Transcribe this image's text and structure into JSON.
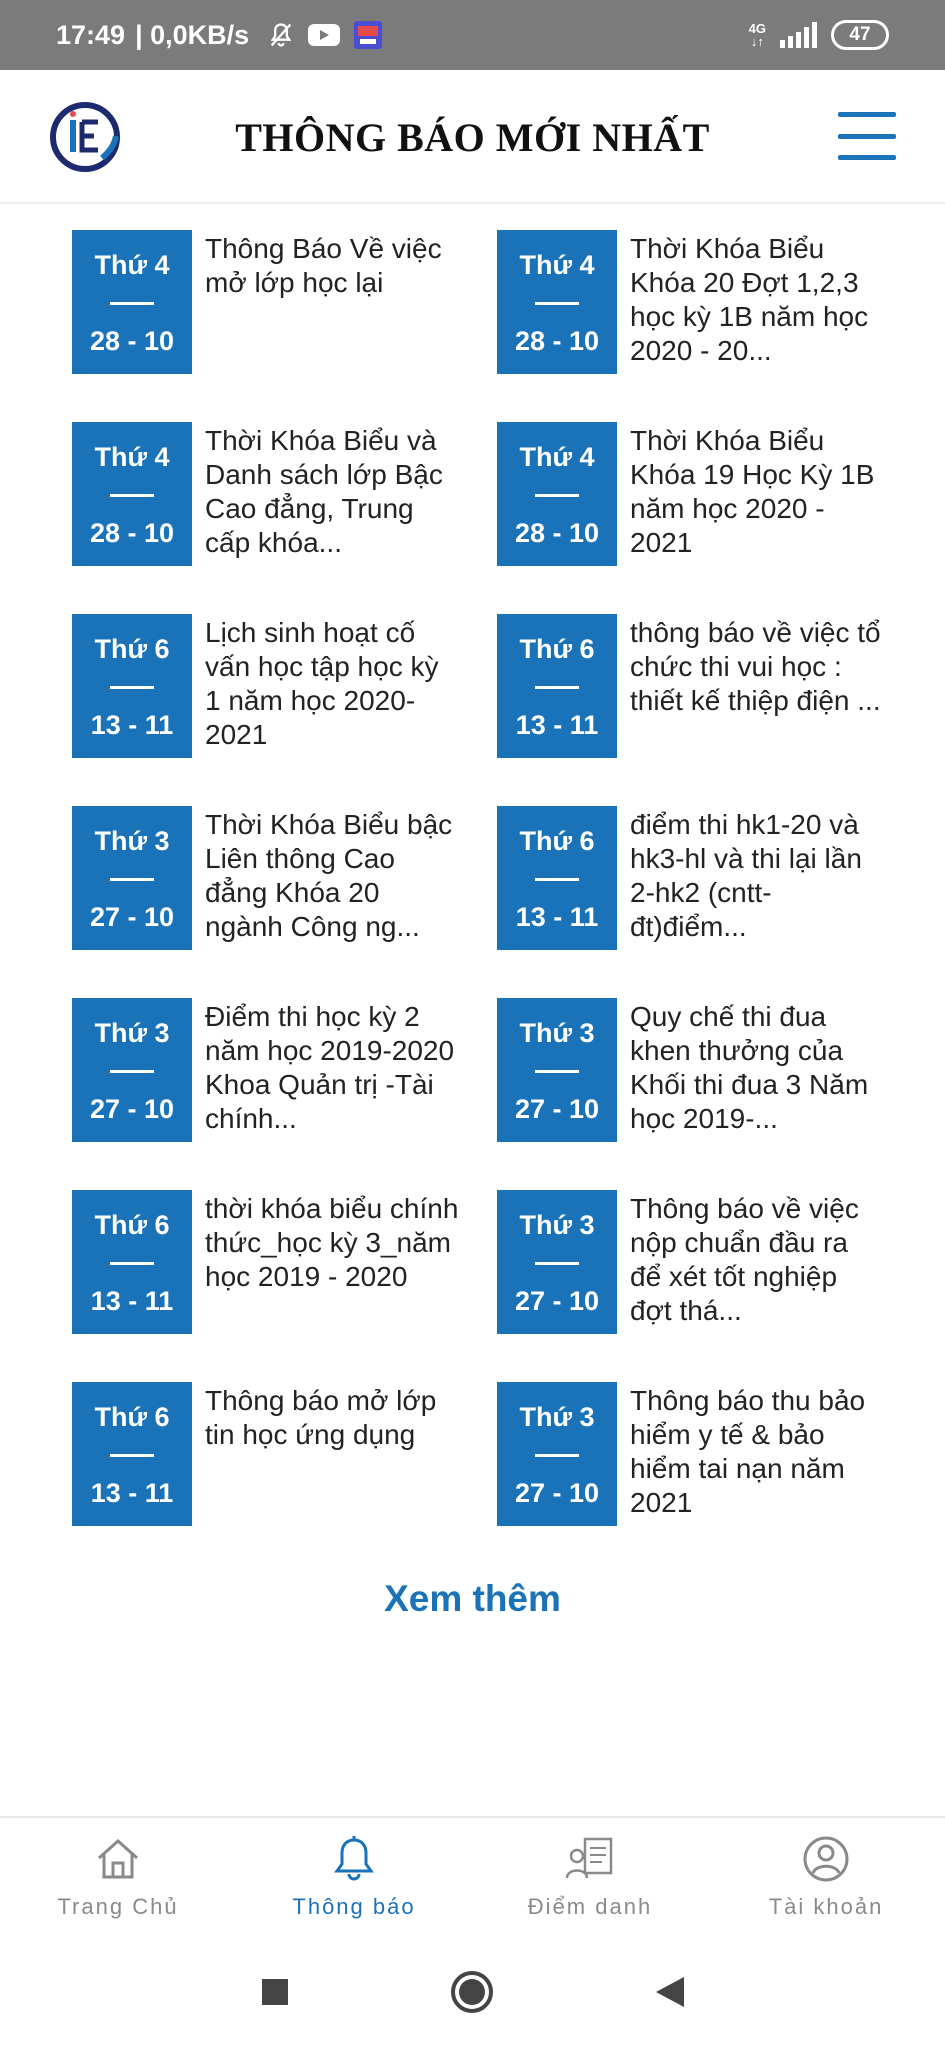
{
  "status_bar": {
    "time": "17:49",
    "network_speed": "| 0,0KB/s",
    "network_type": "4G",
    "battery": "47"
  },
  "header": {
    "title": "THÔNG BÁO MỚI NHẤT",
    "logo_icon": "school-logo-icon",
    "menu_icon": "hamburger-menu-icon",
    "accent_color": "#1a72b8"
  },
  "notices": [
    {
      "day": "Thứ 4",
      "date": "28 - 10",
      "title": "Thông Báo Về việc mở lớp học lại"
    },
    {
      "day": "Thứ 4",
      "date": "28 - 10",
      "title": "Thời Khóa Biểu Khóa 20 Đợt 1,2,3 học kỳ 1B năm học 2020 - 20..."
    },
    {
      "day": "Thứ 4",
      "date": "28 - 10",
      "title": "Thời Khóa Biểu và Danh sách lớp Bậc Cao đẳng, Trung cấp khóa..."
    },
    {
      "day": "Thứ 4",
      "date": "28 - 10",
      "title": "Thời Khóa Biểu Khóa 19 Học Kỳ 1B năm học 2020 - 2021"
    },
    {
      "day": "Thứ 6",
      "date": "13 - 11",
      "title": "Lịch sinh hoạt cố vấn học tập học kỳ 1 năm học 2020-2021"
    },
    {
      "day": "Thứ 6",
      "date": "13 - 11",
      "title": "thông báo về việc tổ chức thi vui học : thiết kế thiệp điện ..."
    },
    {
      "day": "Thứ 3",
      "date": "27 - 10",
      "title": "Thời Khóa Biểu bậc Liên thông Cao đẳng Khóa 20 ngành Công ng..."
    },
    {
      "day": "Thứ 6",
      "date": "13 - 11",
      "title": "điểm thi hk1-20 và hk3-hl và thi lại lần 2-hk2 (cntt-đt)điểm..."
    },
    {
      "day": "Thứ 3",
      "date": "27 - 10",
      "title": "Điểm thi học kỳ 2 năm học 2019-2020 Khoa Quản trị -Tài chính..."
    },
    {
      "day": "Thứ 3",
      "date": "27 - 10",
      "title": "Quy chế thi đua khen thưởng của Khối thi đua 3 Năm học 2019-..."
    },
    {
      "day": "Thứ 6",
      "date": "13 - 11",
      "title": "thời khóa biểu chính thức_học kỳ 3_năm học 2019 - 2020"
    },
    {
      "day": "Thứ 3",
      "date": "27 - 10",
      "title": "Thông báo về việc nộp chuẩn đầu ra để xét tốt nghiệp đợt thá..."
    },
    {
      "day": "Thứ 6",
      "date": "13 - 11",
      "title": "Thông báo mở lớp tin học ứng dụng"
    },
    {
      "day": "Thứ 3",
      "date": "27 - 10",
      "title": " Thông báo thu bảo hiểm y tế & bảo hiểm tai nạn năm 2021"
    }
  ],
  "see_more_label": "Xem thêm",
  "bottom_nav": [
    {
      "label": "Trang Chủ",
      "icon": "home-icon",
      "active": false
    },
    {
      "label": "Thông báo",
      "icon": "bell-icon",
      "active": true
    },
    {
      "label": "Điểm danh",
      "icon": "attendance-icon",
      "active": false
    },
    {
      "label": "Tài khoản",
      "icon": "account-icon",
      "active": false
    }
  ]
}
